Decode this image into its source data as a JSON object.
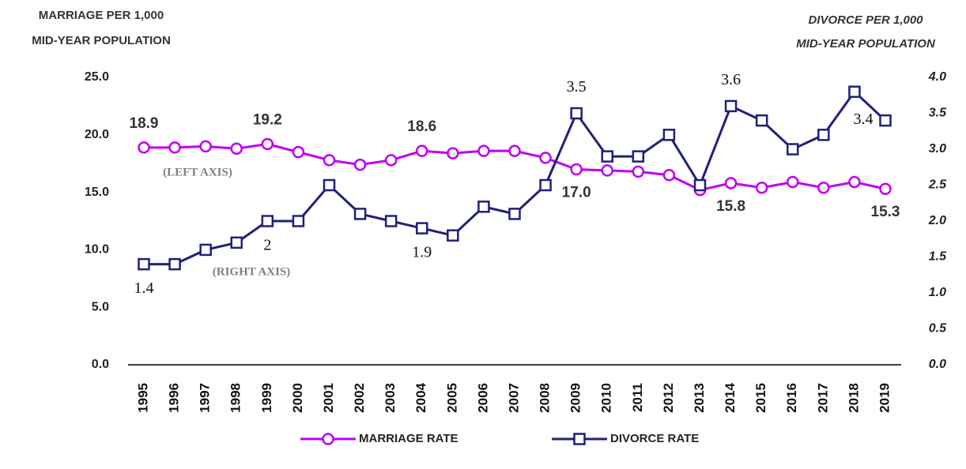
{
  "chart_data": {
    "type": "line",
    "y_label": [
      "MARRIAGE PER 1,000",
      "MID-YEAR POPULATION"
    ],
    "y2_label": [
      "DIVORCE PER 1,000",
      "MID-YEAR POPULATION"
    ],
    "annotations": [
      "(LEFT AXIS)",
      "(RIGHT AXIS)"
    ],
    "categories": [
      "1995",
      "1996",
      "1997",
      "1998",
      "1999",
      "2000",
      "2001",
      "2002",
      "2003",
      "2004",
      "2005",
      "2006",
      "2007",
      "2008",
      "2009",
      "2010",
      "2011",
      "2012",
      "2013",
      "2014",
      "2015",
      "2016",
      "2017",
      "2018",
      "2019"
    ],
    "series": [
      {
        "name": "MARRIAGE RATE",
        "color": "#c000f0",
        "marker": "circle",
        "values": [
          18.9,
          18.9,
          19.0,
          18.8,
          19.2,
          18.5,
          17.8,
          17.4,
          17.8,
          18.6,
          18.4,
          18.6,
          18.6,
          18.0,
          17.0,
          16.9,
          16.8,
          16.5,
          15.2,
          15.8,
          15.4,
          15.9,
          15.4,
          15.9,
          15.3
        ],
        "value_labels": [
          "18.9",
          null,
          null,
          null,
          "19.2",
          null,
          null,
          null,
          null,
          "18.6",
          null,
          null,
          null,
          null,
          "17.0",
          null,
          null,
          null,
          null,
          "15.8",
          null,
          null,
          null,
          null,
          "15.3"
        ]
      },
      {
        "name": "DIVORCE RATE",
        "color": "#20207a",
        "marker": "square",
        "axis": "y2",
        "values": [
          1.4,
          1.4,
          1.6,
          1.7,
          2.0,
          2.0,
          2.5,
          2.1,
          2.0,
          1.9,
          1.8,
          2.2,
          2.1,
          2.5,
          3.5,
          2.9,
          2.9,
          3.2,
          2.5,
          3.6,
          3.4,
          3.0,
          3.2,
          3.8,
          3.4
        ],
        "value_labels": [
          "1.4",
          null,
          null,
          null,
          "2",
          null,
          null,
          null,
          null,
          "1.9",
          null,
          null,
          null,
          null,
          "3.5",
          null,
          null,
          null,
          null,
          "3.6",
          null,
          null,
          null,
          null,
          "3.4"
        ]
      }
    ],
    "ylim": [
      0,
      25
    ],
    "yticks": [
      {
        "value": 0,
        "label": "0.0"
      },
      {
        "value": 5,
        "label": "5.0"
      },
      {
        "value": 10,
        "label": "10.0"
      },
      {
        "value": 15,
        "label": "15.0"
      },
      {
        "value": 20,
        "label": "20.0"
      },
      {
        "value": 25,
        "label": "25.0"
      }
    ],
    "y2lim": [
      0,
      4
    ],
    "y2ticks": [
      {
        "value": 0,
        "label": "0.0"
      },
      {
        "value": 0.5,
        "label": "0.5"
      },
      {
        "value": 1,
        "label": "1.0"
      },
      {
        "value": 1.5,
        "label": "1.5"
      },
      {
        "value": 2,
        "label": "2.0"
      },
      {
        "value": 2.5,
        "label": "2.5"
      },
      {
        "value": 3,
        "label": "3.0"
      },
      {
        "value": 3.5,
        "label": "3.5"
      },
      {
        "value": 4,
        "label": "4.0"
      }
    ],
    "grid": false,
    "legend": "bottom"
  }
}
